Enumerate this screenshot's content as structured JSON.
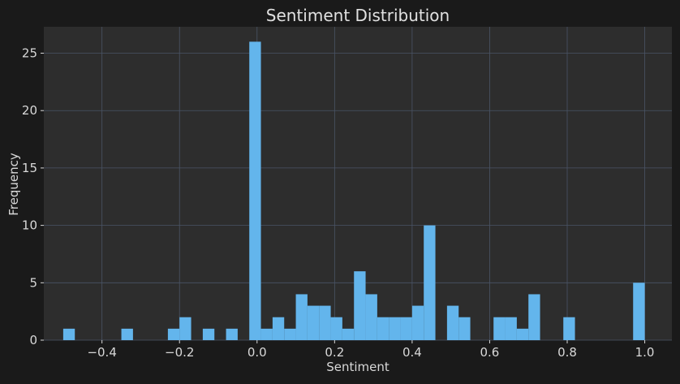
{
  "chart_data": {
    "type": "bar",
    "title": "Sentiment Distribution",
    "xlabel": "Sentiment",
    "ylabel": "Frequency",
    "xlim": [
      -0.55,
      1.07
    ],
    "ylim": [
      0,
      27.3
    ],
    "bin_width": 0.03,
    "x_ticks": [
      -0.4,
      -0.2,
      0.0,
      0.2,
      0.4,
      0.6,
      0.8,
      1.0
    ],
    "x_tick_labels": [
      "−0.4",
      "−0.2",
      "0.0",
      "0.2",
      "0.4",
      "0.6",
      "0.8",
      "1.0"
    ],
    "y_ticks": [
      0,
      5,
      10,
      15,
      20,
      25
    ],
    "y_tick_labels": [
      "0",
      "5",
      "10",
      "15",
      "20",
      "25"
    ],
    "grid": true,
    "bins": [
      {
        "x": -0.5,
        "count": 1
      },
      {
        "x": -0.47,
        "count": 0
      },
      {
        "x": -0.44,
        "count": 0
      },
      {
        "x": -0.41,
        "count": 0
      },
      {
        "x": -0.38,
        "count": 0
      },
      {
        "x": -0.35,
        "count": 1
      },
      {
        "x": -0.32,
        "count": 0
      },
      {
        "x": -0.29,
        "count": 0
      },
      {
        "x": -0.26,
        "count": 0
      },
      {
        "x": -0.23,
        "count": 1
      },
      {
        "x": -0.2,
        "count": 2
      },
      {
        "x": -0.17,
        "count": 0
      },
      {
        "x": -0.14,
        "count": 1
      },
      {
        "x": -0.11,
        "count": 0
      },
      {
        "x": -0.08,
        "count": 1
      },
      {
        "x": -0.05,
        "count": 0
      },
      {
        "x": -0.02,
        "count": 26
      },
      {
        "x": 0.01,
        "count": 1
      },
      {
        "x": 0.04,
        "count": 2
      },
      {
        "x": 0.07,
        "count": 1
      },
      {
        "x": 0.1,
        "count": 4
      },
      {
        "x": 0.13,
        "count": 3
      },
      {
        "x": 0.16,
        "count": 3
      },
      {
        "x": 0.19,
        "count": 2
      },
      {
        "x": 0.22,
        "count": 1
      },
      {
        "x": 0.25,
        "count": 6
      },
      {
        "x": 0.28,
        "count": 4
      },
      {
        "x": 0.31,
        "count": 2
      },
      {
        "x": 0.34,
        "count": 2
      },
      {
        "x": 0.37,
        "count": 2
      },
      {
        "x": 0.4,
        "count": 3
      },
      {
        "x": 0.43,
        "count": 10
      },
      {
        "x": 0.46,
        "count": 0
      },
      {
        "x": 0.49,
        "count": 3
      },
      {
        "x": 0.52,
        "count": 2
      },
      {
        "x": 0.55,
        "count": 0
      },
      {
        "x": 0.58,
        "count": 0
      },
      {
        "x": 0.61,
        "count": 2
      },
      {
        "x": 0.64,
        "count": 2
      },
      {
        "x": 0.67,
        "count": 1
      },
      {
        "x": 0.7,
        "count": 4
      },
      {
        "x": 0.73,
        "count": 0
      },
      {
        "x": 0.76,
        "count": 0
      },
      {
        "x": 0.79,
        "count": 2
      },
      {
        "x": 0.82,
        "count": 0
      },
      {
        "x": 0.85,
        "count": 0
      },
      {
        "x": 0.88,
        "count": 0
      },
      {
        "x": 0.91,
        "count": 0
      },
      {
        "x": 0.94,
        "count": 0
      },
      {
        "x": 0.97,
        "count": 5
      }
    ]
  },
  "colors": {
    "figure_bg": "#1a1a1a",
    "axes_bg": "#2d2d2d",
    "bar": "#63b5ec",
    "grid": "#4a5466",
    "text": "#d8d8d8",
    "title": "#e0e0e0"
  }
}
